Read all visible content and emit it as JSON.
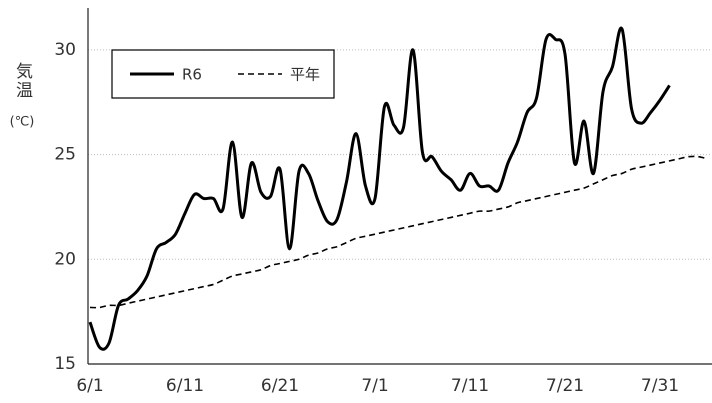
{
  "chart_data": {
    "type": "line",
    "y_label": "気温",
    "y_unit": "(℃)",
    "categories": [
      "6/1",
      null,
      null,
      null,
      null,
      null,
      null,
      null,
      null,
      null,
      "6/11",
      null,
      null,
      null,
      null,
      null,
      null,
      null,
      null,
      null,
      "6/21",
      null,
      null,
      null,
      null,
      null,
      null,
      null,
      null,
      null,
      "7/1",
      null,
      null,
      null,
      null,
      null,
      null,
      null,
      null,
      null,
      "7/11",
      null,
      null,
      null,
      null,
      null,
      null,
      null,
      null,
      null,
      "7/21",
      null,
      null,
      null,
      null,
      null,
      null,
      null,
      null,
      null,
      "7/31",
      null,
      null,
      null,
      null,
      null
    ],
    "series": [
      {
        "name": "R6",
        "color": "#000000",
        "dash": false,
        "values": [
          17.0,
          15.8,
          16.0,
          17.8,
          18.1,
          18.5,
          19.2,
          20.5,
          20.8,
          21.2,
          22.2,
          23.1,
          22.9,
          22.9,
          22.4,
          25.6,
          22.0,
          24.6,
          23.2,
          23.0,
          24.3,
          20.5,
          24.2,
          24.1,
          22.8,
          21.8,
          21.9,
          23.7,
          26.0,
          23.5,
          22.9,
          27.3,
          26.4,
          26.3,
          30.0,
          25.1,
          24.9,
          24.2,
          23.8,
          23.3,
          24.1,
          23.5,
          23.5,
          23.3,
          24.6,
          25.6,
          27.0,
          27.7,
          30.5,
          30.5,
          29.8,
          24.6,
          26.6,
          24.1,
          28.0,
          29.2,
          31.0,
          27.2,
          26.5,
          27.0,
          27.6,
          28.3,
          null,
          null,
          null,
          null
        ]
      },
      {
        "name": "平年",
        "color": "#000000",
        "dash": true,
        "values": [
          17.7,
          17.7,
          17.8,
          17.8,
          17.9,
          18.0,
          18.1,
          18.2,
          18.3,
          18.4,
          18.5,
          18.6,
          18.7,
          18.8,
          19.0,
          19.2,
          19.3,
          19.4,
          19.5,
          19.7,
          19.8,
          19.9,
          20.0,
          20.2,
          20.3,
          20.5,
          20.6,
          20.8,
          21.0,
          21.1,
          21.2,
          21.3,
          21.4,
          21.5,
          21.6,
          21.7,
          21.8,
          21.9,
          22.0,
          22.1,
          22.2,
          22.3,
          22.3,
          22.4,
          22.5,
          22.7,
          22.8,
          22.9,
          23.0,
          23.1,
          23.2,
          23.3,
          23.4,
          23.6,
          23.8,
          24.0,
          24.1,
          24.3,
          24.4,
          24.5,
          24.6,
          24.7,
          24.8,
          24.9,
          24.9,
          24.8
        ]
      }
    ],
    "ylim": [
      15,
      32
    ],
    "yticks": [
      15,
      20,
      25,
      30
    ],
    "grid": true,
    "legend": "top-left"
  }
}
